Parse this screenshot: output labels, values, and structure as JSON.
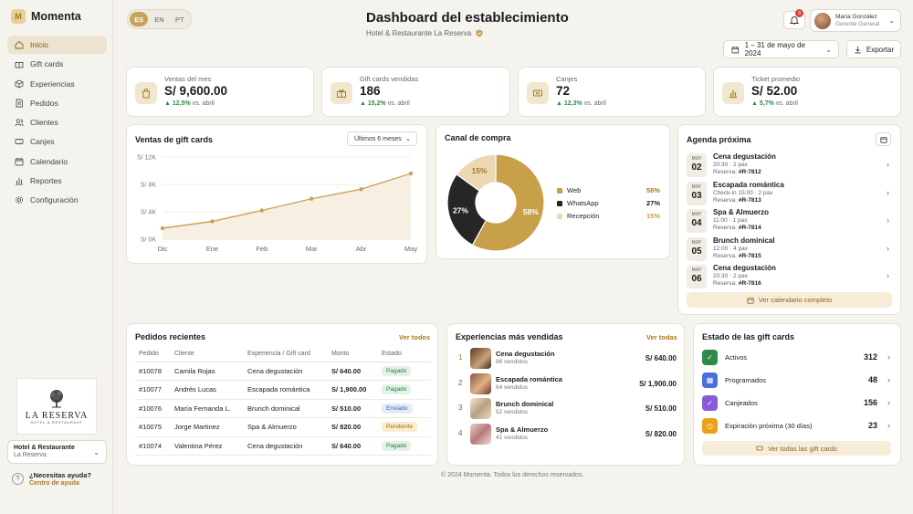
{
  "app": {
    "name": "Momenta"
  },
  "sidebar": {
    "items": [
      {
        "label": "Inicio",
        "icon": "home-icon"
      },
      {
        "label": "Gift cards",
        "icon": "gift-icon"
      },
      {
        "label": "Experiencias",
        "icon": "cube-icon"
      },
      {
        "label": "Pedidos",
        "icon": "document-icon"
      },
      {
        "label": "Clientes",
        "icon": "users-icon"
      },
      {
        "label": "Canjes",
        "icon": "ticket-icon"
      },
      {
        "label": "Calendario",
        "icon": "calendar-icon"
      },
      {
        "label": "Reportes",
        "icon": "bar-chart-icon"
      },
      {
        "label": "Configuración",
        "icon": "gear-icon"
      }
    ],
    "brand": {
      "name": "LA RESERVA",
      "tagline": "HOTEL & RESTAURANT"
    },
    "hotel_selector": {
      "name": "Hotel & Restaurante",
      "sub": "La Reserva"
    },
    "help": {
      "title": "¿Necesitas ayuda?",
      "link": "Centro de ayuda"
    }
  },
  "header": {
    "languages": [
      "ES",
      "EN",
      "PT"
    ],
    "active_language": "ES",
    "title": "Dashboard del establecimiento",
    "subtitle": "Hotel & Restaurante La Reserva",
    "notifications": "3",
    "user": {
      "name": "María González",
      "role": "Gerente General"
    },
    "date_range": "1 – 31 de mayo de 2024",
    "export_label": "Exportar"
  },
  "kpis": [
    {
      "label": "Ventas del mes",
      "value": "S/ 9,600.00",
      "delta": "12,5%",
      "compare": "vs. abril",
      "icon": "bag-icon"
    },
    {
      "label": "Gift cards vendidas",
      "value": "186",
      "delta": "15,2%",
      "compare": "vs. abril",
      "icon": "gift-icon"
    },
    {
      "label": "Canjes",
      "value": "72",
      "delta": "12,3%",
      "compare": "vs. abril",
      "icon": "ticket-icon"
    },
    {
      "label": "Ticket promedio",
      "value": "S/ 52.00",
      "delta": "5,7%",
      "compare": "vs. abril",
      "icon": "bar-chart-icon"
    }
  ],
  "sales_chart": {
    "title": "Ventas de gift cards",
    "period": "Últimos 6 meses"
  },
  "chart_data": [
    {
      "type": "area",
      "title": "Ventas de gift cards",
      "categories": [
        "Dic",
        "Ene",
        "Feb",
        "Mar",
        "Abr",
        "May"
      ],
      "values": [
        1600,
        2600,
        4200,
        5900,
        7300,
        9600
      ],
      "y_ticks": [
        "S/ 0K",
        "S/ 4K",
        "S/ 8K",
        "S/ 12K"
      ],
      "ylim": [
        0,
        12000
      ],
      "color": "#c8a25a"
    },
    {
      "type": "pie",
      "title": "Canal de compra",
      "labels": [
        "Web",
        "WhatsApp",
        "Recepción"
      ],
      "values": [
        58,
        27,
        15
      ],
      "colors": [
        "#c8a04a",
        "#262626",
        "#ebd9b3"
      ]
    }
  ],
  "channel": {
    "title": "Canal de compra",
    "legend": [
      {
        "name": "Web",
        "pct": "58%"
      },
      {
        "name": "WhatsApp",
        "pct": "27%"
      },
      {
        "name": "Recepción",
        "pct": "15%"
      }
    ]
  },
  "agenda": {
    "title": "Agenda próxima",
    "items": [
      {
        "month": "MAY",
        "day": "02",
        "title": "Cena degustación",
        "detail": "20:30 · 2 pax",
        "res_label": "Reserva:",
        "res": "#R-7812"
      },
      {
        "month": "MAY",
        "day": "03",
        "title": "Escapada romántica",
        "detail": "Check-in 15:00 · 2 pax",
        "res_label": "Reserva:",
        "res": "#R-7813"
      },
      {
        "month": "MAY",
        "day": "04",
        "title": "Spa & Almuerzo",
        "detail": "11:00 · 1 pax",
        "res_label": "Reserva:",
        "res": "#R-7814"
      },
      {
        "month": "MAY",
        "day": "05",
        "title": "Brunch dominical",
        "detail": "12:00 · 4 pax",
        "res_label": "Reserva:",
        "res": "#R-7815"
      },
      {
        "month": "MAY",
        "day": "06",
        "title": "Cena degustación",
        "detail": "20:30 · 2 pax",
        "res_label": "Reserva:",
        "res": "#R-7816"
      }
    ],
    "button": "Ver calendario completo"
  },
  "orders": {
    "title": "Pedidos recientes",
    "link": "Ver todos",
    "columns": [
      "Pedido",
      "Cliente",
      "Experiencia / Gift card",
      "Monto",
      "Estado"
    ],
    "rows": [
      {
        "id": "#10078",
        "client": "Camila Rojas",
        "exp": "Cena degustación",
        "amount": "S/ 640.00",
        "status": "Pagado",
        "tone": "g"
      },
      {
        "id": "#10077",
        "client": "Andrés Lucas",
        "exp": "Escapada romántica",
        "amount": "S/ 1,900.00",
        "status": "Pagado",
        "tone": "g"
      },
      {
        "id": "#10076",
        "client": "María Fernanda L.",
        "exp": "Brunch dominical",
        "amount": "S/ 510.00",
        "status": "Enviado",
        "tone": "b"
      },
      {
        "id": "#10075",
        "client": "Jorge Martinez",
        "exp": "Spa & Almuerzo",
        "amount": "S/ 820.00",
        "status": "Pendiente",
        "tone": "y"
      },
      {
        "id": "#10074",
        "client": "Valentina Pérez",
        "exp": "Cena degustación",
        "amount": "S/ 640.00",
        "status": "Pagado",
        "tone": "g"
      }
    ]
  },
  "top_experiences": {
    "title": "Experiencias más vendidas",
    "link": "Ver todas",
    "items": [
      {
        "rank": "1",
        "name": "Cena degustación",
        "sold": "86 vendidos",
        "price": "S/ 640.00"
      },
      {
        "rank": "2",
        "name": "Escapada romántica",
        "sold": "64 vendidos",
        "price": "S/ 1,900.00"
      },
      {
        "rank": "3",
        "name": "Brunch dominical",
        "sold": "52 vendidos",
        "price": "S/ 510.00"
      },
      {
        "rank": "4",
        "name": "Spa & Almuerzo",
        "sold": "41 vendidos",
        "price": "S/ 820.00"
      }
    ]
  },
  "gift_status": {
    "title": "Estado de las gift cards",
    "items": [
      {
        "label": "Activos",
        "value": "312",
        "color": "#2f8a4a",
        "icon": "check-icon"
      },
      {
        "label": "Programados",
        "value": "48",
        "color": "#4a6fd8",
        "icon": "calendar-icon"
      },
      {
        "label": "Canjeados",
        "value": "156",
        "color": "#8a5ad8",
        "icon": "check-icon"
      },
      {
        "label": "Expiración próxima (30 días)",
        "value": "23",
        "color": "#e8a219",
        "icon": "clock-icon"
      }
    ],
    "button": "Ver todas las gift cards"
  },
  "footer": "© 2024 Momenta. Todos los derechos reservados."
}
